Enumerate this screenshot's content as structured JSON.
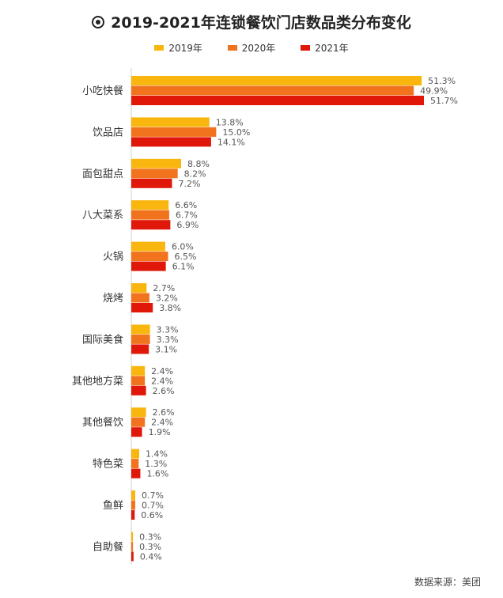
{
  "title": "2019-2021年连锁餐饮门店数品类分布变化",
  "source": "数据来源：美团",
  "colors": {
    "s2019": "#f9b60f",
    "s2020": "#f2731e",
    "s2021": "#e0180a",
    "axis": "#d0d0d0"
  },
  "chart_data": {
    "type": "bar",
    "orientation": "horizontal",
    "title": "2019-2021年连锁餐饮门店数品类分布变化",
    "legend": "top",
    "grid": false,
    "xlim": [
      0,
      60
    ],
    "categories": [
      "小吃快餐",
      "饮品店",
      "面包甜点",
      "八大菜系",
      "火锅",
      "烧烤",
      "国际美食",
      "其他地方菜",
      "其他餐饮",
      "特色菜",
      "鱼鲜",
      "自助餐"
    ],
    "series": [
      {
        "name": "2019年",
        "values": [
          51.3,
          13.8,
          8.8,
          6.6,
          6.0,
          2.7,
          3.3,
          2.4,
          2.6,
          1.4,
          0.7,
          0.3
        ],
        "labels": [
          "51.3%",
          "13.8%",
          "8.8%",
          "6.6%",
          "6.0%",
          "2.7%",
          "3.3%",
          "2.4%",
          "2.6%",
          "1.4%",
          "0.7%",
          "0.3%"
        ]
      },
      {
        "name": "2020年",
        "values": [
          49.9,
          15.0,
          8.2,
          6.7,
          6.5,
          3.2,
          3.3,
          2.4,
          2.4,
          1.3,
          0.7,
          0.3
        ],
        "labels": [
          "49.9%",
          "15.0%",
          "8.2%",
          "6.7%",
          "6.5%",
          "3.2%",
          "3.3%",
          "2.4%",
          "2.4%",
          "1.3%",
          "0.7%",
          "0.3%"
        ]
      },
      {
        "name": "2021年",
        "values": [
          51.7,
          14.1,
          7.2,
          6.9,
          6.1,
          3.8,
          3.1,
          2.6,
          1.9,
          1.6,
          0.6,
          0.4
        ],
        "labels": [
          "51.7%",
          "14.1%",
          "7.2%",
          "6.9%",
          "6.1%",
          "3.8%",
          "3.1%",
          "2.6%",
          "1.9%",
          "1.6%",
          "0.6%",
          "0.4%"
        ]
      }
    ]
  }
}
